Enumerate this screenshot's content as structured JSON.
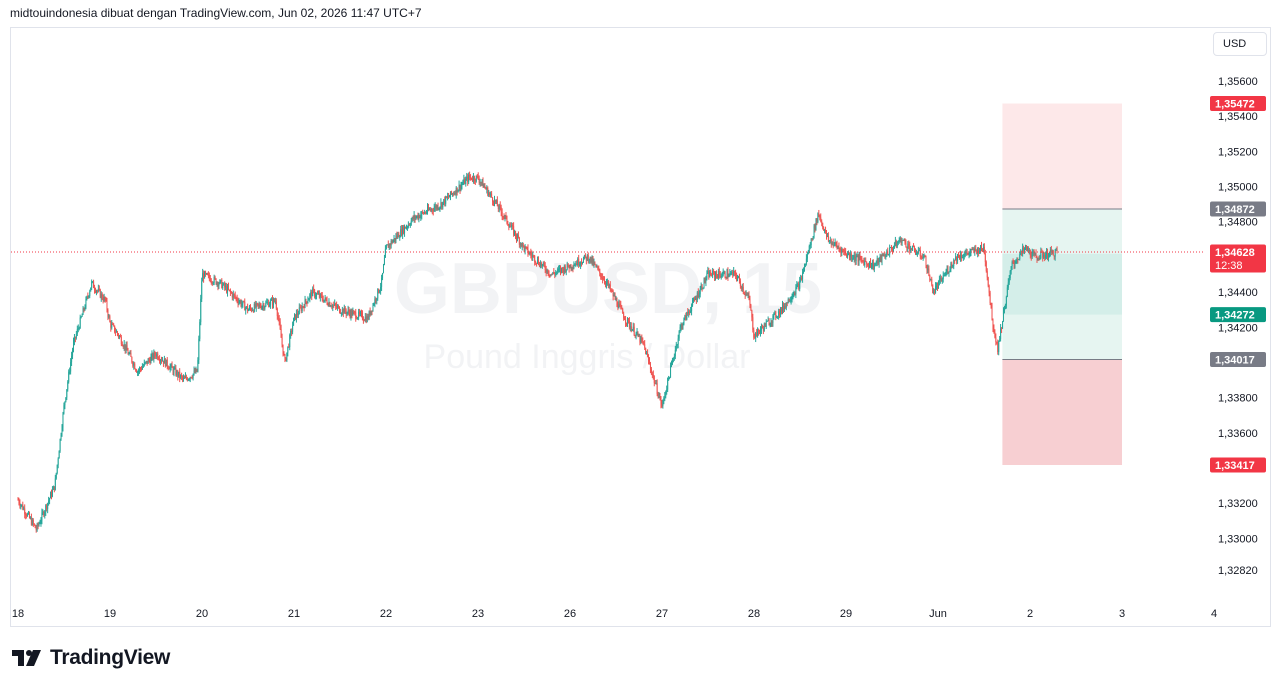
{
  "header": {
    "caption": "midtouindonesia dibuat dengan TradingView.com, Jun 02, 2026 11:47 UTC+7"
  },
  "currency_button": "USD",
  "watermark": {
    "symbol": "GBPUSD, 15",
    "description": "Pound Inggris / Dollar"
  },
  "logo": {
    "text": "TradingView"
  },
  "colors": {
    "up": "#26a69a",
    "down": "#ef5350",
    "stop_zone": "#f7cfd2",
    "target_zone": "#d4eee9",
    "tag_red": "#f23645",
    "tag_green": "#089981",
    "tag_gray": "#787b86"
  },
  "chart_data": {
    "type": "candlestick",
    "symbol": "GBPUSD",
    "interval": "15",
    "x_tick_labels": [
      "18",
      "19",
      "20",
      "21",
      "22",
      "23",
      "26",
      "27",
      "28",
      "29",
      "Jun",
      "2",
      "3",
      "4"
    ],
    "y_tick_labels": [
      "1,35600",
      "1,35400",
      "1,35200",
      "1,35000",
      "1,34800",
      "1,34400",
      "1,34200",
      "1,33800",
      "1,33600",
      "1,33200",
      "1,33000",
      "1,32820"
    ],
    "ylim": [
      1.3275,
      1.358
    ],
    "grid": false,
    "close_path": {
      "day": [
        0.0,
        0.2,
        0.4,
        0.5,
        0.6,
        0.8,
        0.95,
        1.0,
        1.1,
        1.3,
        1.5,
        1.8,
        1.95,
        2.0,
        2.2,
        2.5,
        2.8,
        2.9,
        3.0,
        3.2,
        3.5,
        3.8,
        3.95,
        4.0,
        4.3,
        4.6,
        4.9,
        5.0,
        5.2,
        5.5,
        5.8,
        6.0,
        6.2,
        6.4,
        6.6,
        6.8,
        7.0,
        7.2,
        7.5,
        7.8,
        7.95,
        8.0,
        8.3,
        8.5,
        8.7,
        8.8,
        9.0,
        9.3,
        9.6,
        9.7,
        9.85,
        9.95,
        10.2,
        10.5,
        10.6,
        10.65,
        10.75,
        10.8,
        10.95,
        11.05,
        11.3
      ],
      "price": [
        1.3322,
        1.3305,
        1.333,
        1.3375,
        1.341,
        1.3445,
        1.3435,
        1.3422,
        1.3415,
        1.3395,
        1.3405,
        1.339,
        1.3395,
        1.345,
        1.3445,
        1.343,
        1.3435,
        1.34,
        1.3425,
        1.344,
        1.343,
        1.3425,
        1.3445,
        1.3465,
        1.3482,
        1.349,
        1.3505,
        1.3505,
        1.349,
        1.3465,
        1.345,
        1.3455,
        1.346,
        1.3445,
        1.3425,
        1.341,
        1.3375,
        1.342,
        1.345,
        1.345,
        1.3435,
        1.3415,
        1.343,
        1.3445,
        1.3485,
        1.347,
        1.3462,
        1.3455,
        1.347,
        1.3465,
        1.346,
        1.344,
        1.346,
        1.3465,
        1.342,
        1.3408,
        1.344,
        1.3455,
        1.3465,
        1.346,
        1.34628
      ]
    },
    "last_price": "1,34628",
    "countdown": "12:38",
    "position": {
      "target": "1,35472",
      "entry": "1,34872",
      "current_marker": "1,34617",
      "level_mid": "1,34272",
      "stop": "1,34017",
      "stop_extended": "1,33417",
      "target_value": 1.35472,
      "entry_value": 1.34872,
      "current_value": 1.34617,
      "mid_value": 1.34272,
      "stop_value": 1.34017,
      "stop_ext_value": 1.33417,
      "start_day": 10.7,
      "end_day": 12.0
    }
  }
}
